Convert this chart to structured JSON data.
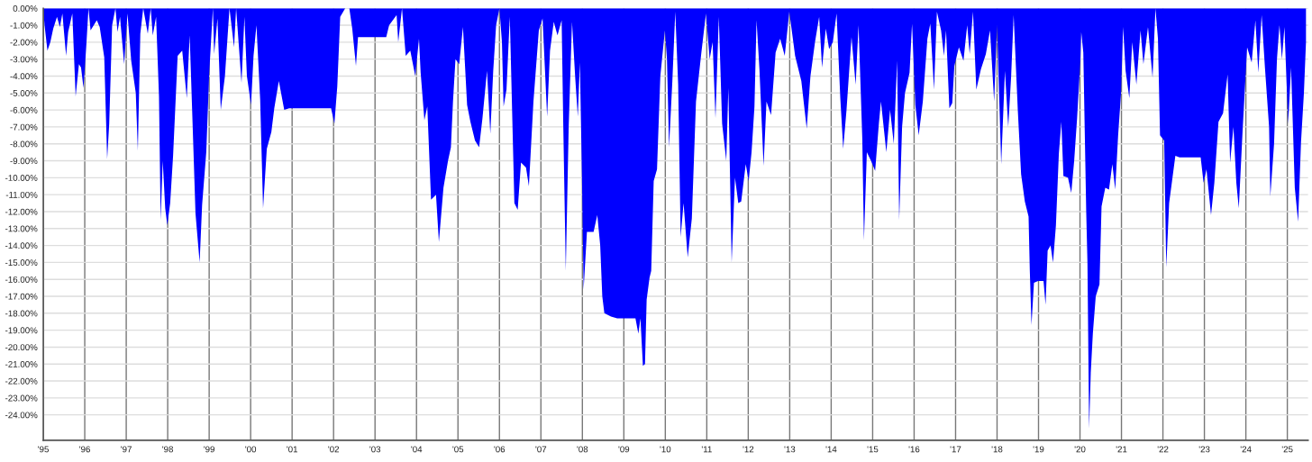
{
  "chart_data": {
    "type": "area",
    "x": [
      1995.0,
      1995.03,
      1995.1,
      1995.17,
      1995.24,
      1995.33,
      1995.4,
      1995.46,
      1995.55,
      1995.6,
      1995.7,
      1995.78,
      1995.86,
      1995.91,
      1995.97,
      1996.04,
      1996.09,
      1996.14,
      1996.29,
      1996.36,
      1996.47,
      1996.54,
      1996.59,
      1996.66,
      1996.74,
      1996.79,
      1996.85,
      1996.95,
      1997.03,
      1997.12,
      1997.23,
      1997.28,
      1997.34,
      1997.41,
      1997.52,
      1997.59,
      1997.64,
      1997.72,
      1997.79,
      1997.83,
      1997.88,
      1997.94,
      1997.99,
      1998.06,
      1998.13,
      1998.24,
      1998.35,
      1998.46,
      1998.53,
      1998.6,
      1998.67,
      1998.77,
      1998.83,
      1998.93,
      1999.0,
      1999.09,
      1999.12,
      1999.2,
      1999.28,
      1999.38,
      1999.49,
      1999.6,
      1999.65,
      1999.78,
      1999.85,
      1999.91,
      2000.01,
      2000.07,
      2000.14,
      2000.23,
      2000.3,
      2000.39,
      2000.5,
      2000.57,
      2000.68,
      2000.81,
      2000.93,
      2001.33,
      2001.94,
      2002.02,
      2002.09,
      2002.16,
      2002.28,
      2002.38,
      2002.45,
      2002.54,
      2002.59,
      2003.27,
      2003.34,
      2003.52,
      2003.56,
      2003.65,
      2003.74,
      2003.85,
      2003.97,
      2004.06,
      2004.1,
      2004.19,
      2004.26,
      2004.35,
      2004.47,
      2004.54,
      2004.65,
      2004.76,
      2004.83,
      2004.88,
      2004.94,
      2005.03,
      2005.12,
      2005.22,
      2005.3,
      2005.41,
      2005.51,
      2005.59,
      2005.7,
      2005.78,
      2005.85,
      2005.92,
      2006.0,
      2006.06,
      2006.1,
      2006.17,
      2006.25,
      2006.36,
      2006.44,
      2006.52,
      2006.64,
      2006.71,
      2006.82,
      2006.95,
      2007.04,
      2007.15,
      2007.22,
      2007.31,
      2007.4,
      2007.5,
      2007.54,
      2007.6,
      2007.67,
      2007.75,
      2007.83,
      2007.89,
      2007.94,
      2007.99,
      2008.03,
      2008.11,
      2008.27,
      2008.36,
      2008.43,
      2008.48,
      2008.53,
      2008.69,
      2008.84,
      2009.28,
      2009.35,
      2009.4,
      2009.46,
      2009.51,
      2009.55,
      2009.62,
      2009.66,
      2009.72,
      2009.8,
      2009.88,
      2009.99,
      2010.04,
      2010.09,
      2010.17,
      2010.24,
      2010.31,
      2010.37,
      2010.44,
      2010.54,
      2010.64,
      2010.74,
      2010.87,
      2010.98,
      2011.07,
      2011.14,
      2011.21,
      2011.29,
      2011.37,
      2011.47,
      2011.52,
      2011.6,
      2011.68,
      2011.76,
      2011.83,
      2011.94,
      2012.01,
      2012.08,
      2012.15,
      2012.2,
      2012.27,
      2012.37,
      2012.44,
      2012.55,
      2012.66,
      2012.77,
      2012.88,
      2012.99,
      2013.13,
      2013.28,
      2013.41,
      2013.5,
      2013.61,
      2013.71,
      2013.78,
      2013.87,
      2013.95,
      2014.04,
      2014.13,
      2014.22,
      2014.29,
      2014.37,
      2014.49,
      2014.59,
      2014.66,
      2014.75,
      2014.79,
      2014.86,
      2014.96,
      2015.06,
      2015.15,
      2015.2,
      2015.33,
      2015.42,
      2015.51,
      2015.59,
      2015.64,
      2015.71,
      2015.78,
      2015.89,
      2015.95,
      2016.03,
      2016.11,
      2016.21,
      2016.32,
      2016.39,
      2016.48,
      2016.55,
      2016.65,
      2016.72,
      2016.77,
      2016.85,
      2016.92,
      2016.97,
      2017.08,
      2017.19,
      2017.28,
      2017.34,
      2017.42,
      2017.5,
      2017.61,
      2017.73,
      2017.83,
      2017.93,
      2018.0,
      2018.1,
      2018.19,
      2018.27,
      2018.34,
      2018.4,
      2018.5,
      2018.58,
      2018.67,
      2018.76,
      2018.79,
      2018.83,
      2018.89,
      2018.99,
      2019.12,
      2019.17,
      2019.22,
      2019.29,
      2019.35,
      2019.42,
      2019.49,
      2019.55,
      2019.6,
      2019.71,
      2019.79,
      2019.86,
      2019.93,
      2020.01,
      2020.03,
      2020.08,
      2020.15,
      2020.18,
      2020.22,
      2020.26,
      2020.31,
      2020.38,
      2020.47,
      2020.52,
      2020.61,
      2020.7,
      2020.78,
      2020.85,
      2020.92,
      2020.99,
      2021.04,
      2021.1,
      2021.19,
      2021.26,
      2021.36,
      2021.46,
      2021.53,
      2021.64,
      2021.75,
      2021.82,
      2021.88,
      2021.93,
      2022.03,
      2022.08,
      2022.15,
      2022.22,
      2022.3,
      2022.4,
      2022.91,
      2022.98,
      2023.05,
      2023.16,
      2023.24,
      2023.34,
      2023.45,
      2023.56,
      2023.62,
      2023.7,
      2023.77,
      2023.83,
      2023.92,
      2024.03,
      2024.14,
      2024.23,
      2024.3,
      2024.38,
      2024.46,
      2024.56,
      2024.59,
      2024.68,
      2024.75,
      2024.81,
      2024.87,
      2024.93,
      2025.02,
      2025.09,
      2025.18,
      2025.26,
      2025.33,
      2025.4,
      2025.45
    ],
    "series": [
      {
        "color": "#0000ff",
        "values": [
          0,
          -1.0,
          -2.5,
          -2.0,
          -1.2,
          -0.5,
          -1.1,
          -0.3,
          -2.8,
          -1.4,
          -0.3,
          -5.2,
          -3.3,
          -3.5,
          -4.7,
          -2.1,
          0,
          -1.3,
          -0.7,
          -1.1,
          -2.9,
          -8.9,
          -6.8,
          -1.0,
          0,
          -1.4,
          -0.5,
          -3.3,
          -0.3,
          -3.1,
          -5.0,
          -8.4,
          -1.5,
          0,
          -1.5,
          0,
          -1.6,
          -0.5,
          -5.2,
          -12.5,
          -9.0,
          -11.8,
          -12.8,
          -11.5,
          -8.7,
          -2.8,
          -2.5,
          -5.3,
          -1.6,
          -6.8,
          -12.1,
          -15.0,
          -11.6,
          -8.5,
          -3.9,
          0,
          -2.7,
          -0.6,
          -6.0,
          -4.0,
          0,
          -2.3,
          0,
          -4.4,
          -0.5,
          -4.0,
          -5.7,
          -2.8,
          -1.0,
          -5.4,
          -11.8,
          -8.3,
          -7.3,
          -5.9,
          -4.3,
          -6.0,
          -5.9,
          -5.9,
          -5.9,
          -6.8,
          -4.6,
          -0.5,
          0,
          0,
          -1.2,
          -3.4,
          -1.7,
          -1.7,
          -1.0,
          -0.4,
          -2.0,
          0,
          -2.8,
          -2.5,
          -4.0,
          -1.8,
          -3.8,
          -6.6,
          -5.8,
          -11.3,
          -11.0,
          -13.8,
          -10.6,
          -9.0,
          -8.2,
          -5.5,
          -3.0,
          -3.3,
          -1.1,
          -5.7,
          -6.7,
          -7.8,
          -8.2,
          -6.5,
          -3.7,
          -7.4,
          -3.7,
          -1.0,
          0,
          -2.0,
          -5.8,
          -4.8,
          -0.5,
          -11.5,
          -11.9,
          -9.1,
          -9.4,
          -10.5,
          -5.5,
          -1.3,
          -0.6,
          -6.4,
          -2.5,
          -0.8,
          -1.6,
          -0.7,
          -7.0,
          -15.5,
          -7.0,
          -0.8,
          -4.2,
          -6.4,
          -3.2,
          -10.0,
          -16.6,
          -13.2,
          -13.2,
          -12.2,
          -14.0,
          -17.0,
          -18.0,
          -18.2,
          -18.3,
          -18.3,
          -19.2,
          -18.3,
          -21.1,
          -21.0,
          -17.2,
          -15.9,
          -15.5,
          -10.2,
          -9.5,
          -4.0,
          -1.3,
          -3.0,
          -8.2,
          -4.3,
          -0.2,
          -4.5,
          -13.5,
          -11.5,
          -14.7,
          -12.4,
          -5.5,
          -2.6,
          -0.3,
          -3.0,
          -2.0,
          -6.5,
          -0.5,
          -6.8,
          -9.0,
          -4.7,
          -15.0,
          -10.0,
          -11.5,
          -11.4,
          -9.2,
          -10.2,
          -8.5,
          -5.8,
          -0.7,
          -3.6,
          -9.3,
          -5.5,
          -6.3,
          -2.6,
          -1.8,
          -2.8,
          -0.2,
          -2.8,
          -4.3,
          -7.1,
          -4.0,
          -2.0,
          -0.5,
          -3.5,
          -1.2,
          -2.4,
          -2.0,
          -0.3,
          -5.3,
          -8.3,
          -6.0,
          -1.7,
          -4.5,
          -1.0,
          -7.7,
          -13.7,
          -8.5,
          -9.0,
          -9.6,
          -6.8,
          -5.5,
          -8.5,
          -6.0,
          -8.0,
          -3.1,
          -12.5,
          -7.0,
          -5.0,
          -3.8,
          -0.9,
          -5.7,
          -7.5,
          -5.5,
          -1.8,
          -0.9,
          -4.8,
          -0.2,
          -1.3,
          -2.8,
          -1.3,
          -5.9,
          -5.6,
          -3.4,
          -2.3,
          -3.1,
          -1.0,
          -2.7,
          -0.2,
          -4.8,
          -3.6,
          -2.7,
          -1.3,
          -5.5,
          -1.0,
          -9.2,
          -3.7,
          -7.0,
          -4.0,
          -0.4,
          -6.0,
          -9.8,
          -11.4,
          -12.3,
          -15.5,
          -18.7,
          -16.2,
          -16.1,
          -16.1,
          -17.5,
          -14.3,
          -14.0,
          -15.0,
          -12.8,
          -8.6,
          -6.7,
          -9.9,
          -10.0,
          -10.9,
          -9.0,
          -6.5,
          -3.0,
          -1.4,
          -2.6,
          -12.0,
          -15.0,
          -24.8,
          -21.5,
          -19.2,
          -17.0,
          -16.3,
          -11.7,
          -10.6,
          -10.7,
          -9.2,
          -10.7,
          -7.5,
          -5.0,
          -1.1,
          -3.7,
          -5.3,
          -2.0,
          -4.5,
          -1.3,
          -3.3,
          -1.1,
          -4.1,
          0,
          -1.8,
          -7.5,
          -7.8,
          -15.3,
          -11.5,
          -10.2,
          -8.7,
          -8.8,
          -8.8,
          -10.3,
          -9.5,
          -12.2,
          -10.3,
          -6.7,
          -6.2,
          -3.9,
          -9.1,
          -7.0,
          -10.3,
          -11.8,
          -7.3,
          -2.3,
          -3.2,
          -0.7,
          -3.8,
          -0.4,
          -3.5,
          -7.0,
          -11.1,
          -8.0,
          -3.0,
          -1.0,
          -3.0,
          -1.1,
          -6.8,
          -3.5,
          -10.6,
          -12.6,
          -7.9,
          -5.0,
          -2.0
        ]
      }
    ],
    "xlim": [
      1995,
      2025.5
    ],
    "ylim": [
      -25.5,
      0
    ],
    "xticks": [
      {
        "value": 1995,
        "label": "'95"
      },
      {
        "value": 1996,
        "label": "'96"
      },
      {
        "value": 1997,
        "label": "'97"
      },
      {
        "value": 1998,
        "label": "'98"
      },
      {
        "value": 1999,
        "label": "'99"
      },
      {
        "value": 2000,
        "label": "'00"
      },
      {
        "value": 2001,
        "label": "'01"
      },
      {
        "value": 2002,
        "label": "'02"
      },
      {
        "value": 2003,
        "label": "'03"
      },
      {
        "value": 2004,
        "label": "'04"
      },
      {
        "value": 2005,
        "label": "'05"
      },
      {
        "value": 2006,
        "label": "'06"
      },
      {
        "value": 2007,
        "label": "'07"
      },
      {
        "value": 2008,
        "label": "'08"
      },
      {
        "value": 2009,
        "label": "'09"
      },
      {
        "value": 2010,
        "label": "'10"
      },
      {
        "value": 2011,
        "label": "'11"
      },
      {
        "value": 2012,
        "label": "'12"
      },
      {
        "value": 2013,
        "label": "'13"
      },
      {
        "value": 2014,
        "label": "'14"
      },
      {
        "value": 2015,
        "label": "'15"
      },
      {
        "value": 2016,
        "label": "'16"
      },
      {
        "value": 2017,
        "label": "'17"
      },
      {
        "value": 2018,
        "label": "'18"
      },
      {
        "value": 2019,
        "label": "'19"
      },
      {
        "value": 2020,
        "label": "'20"
      },
      {
        "value": 2021,
        "label": "'21"
      },
      {
        "value": 2022,
        "label": "'22"
      },
      {
        "value": 2023,
        "label": "'23"
      },
      {
        "value": 2024,
        "label": "'24"
      },
      {
        "value": 2025,
        "label": "'25"
      }
    ],
    "yticks": [
      {
        "value": 0,
        "label": "0.00%"
      },
      {
        "value": -1,
        "label": "-1.00%"
      },
      {
        "value": -2,
        "label": "-2.00%"
      },
      {
        "value": -3,
        "label": "-3.00%"
      },
      {
        "value": -4,
        "label": "-4.00%"
      },
      {
        "value": -5,
        "label": "-5.00%"
      },
      {
        "value": -6,
        "label": "-6.00%"
      },
      {
        "value": -7,
        "label": "-7.00%"
      },
      {
        "value": -8,
        "label": "-8.00%"
      },
      {
        "value": -9,
        "label": "-9.00%"
      },
      {
        "value": -10,
        "label": "-10.00%"
      },
      {
        "value": -11,
        "label": "-11.00%"
      },
      {
        "value": -12,
        "label": "-12.00%"
      },
      {
        "value": -13,
        "label": "-13.00%"
      },
      {
        "value": -14,
        "label": "-14.00%"
      },
      {
        "value": -15,
        "label": "-15.00%"
      },
      {
        "value": -16,
        "label": "-16.00%"
      },
      {
        "value": -17,
        "label": "-17.00%"
      },
      {
        "value": -18,
        "label": "-18.00%"
      },
      {
        "value": -19,
        "label": "-19.00%"
      },
      {
        "value": -20,
        "label": "-20.00%"
      },
      {
        "value": -21,
        "label": "-21.00%"
      },
      {
        "value": -22,
        "label": "-22.00%"
      },
      {
        "value": -23,
        "label": "-23.00%"
      },
      {
        "value": -24,
        "label": "-24.00%"
      }
    ],
    "grid": true
  }
}
